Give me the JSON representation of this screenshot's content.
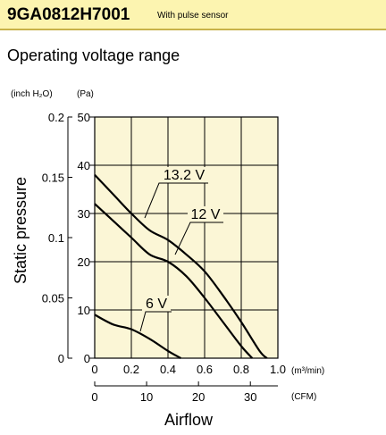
{
  "header": {
    "model": "9GA0812H7001",
    "subtitle": "With pulse sensor",
    "background_color": "#fcf4b0",
    "rule_color": "#c8b24a"
  },
  "chart_heading": "Operating voltage range",
  "chart_data": {
    "type": "line",
    "title": "Operating voltage range",
    "plot_background": "#fbf6d6",
    "grid": true,
    "xlabel": "Airflow",
    "ylabel": "Static pressure",
    "x_axis_primary": {
      "unit": "(m³/min)",
      "range": [
        0,
        1.0
      ],
      "ticks": [
        0,
        0.2,
        0.4,
        0.6,
        0.8,
        1.0
      ],
      "tick_labels": [
        "0",
        "0.2",
        "0.4",
        "0.6",
        "0.8",
        "1.0"
      ]
    },
    "x_axis_secondary": {
      "unit": "(CFM)",
      "range": [
        0,
        35.3
      ],
      "ticks": [
        0,
        10,
        20,
        30
      ],
      "tick_labels": [
        "0",
        "10",
        "20",
        "30"
      ]
    },
    "y_axis_primary": {
      "unit": "(Pa)",
      "range": [
        0,
        50
      ],
      "ticks": [
        0,
        10,
        20,
        30,
        40,
        50
      ],
      "tick_labels": [
        "0",
        "10",
        "20",
        "30",
        "40",
        "50"
      ]
    },
    "y_axis_secondary": {
      "unit": "(inch H₂O)",
      "range": [
        0,
        0.2
      ],
      "ticks": [
        0,
        0.05,
        0.1,
        0.15,
        0.2
      ],
      "tick_labels": [
        "0",
        "0.05",
        "0.1",
        "0.15",
        "0.2"
      ]
    },
    "series": [
      {
        "name": "13.2 V",
        "x": [
          0,
          0.1,
          0.2,
          0.3,
          0.4,
          0.5,
          0.6,
          0.7,
          0.8,
          0.9,
          0.94
        ],
        "y": [
          38,
          34,
          30,
          26.5,
          24.5,
          21.5,
          18,
          13,
          7.5,
          1.5,
          0
        ]
      },
      {
        "name": "12 V",
        "x": [
          0,
          0.1,
          0.2,
          0.3,
          0.4,
          0.5,
          0.6,
          0.7,
          0.8,
          0.86
        ],
        "y": [
          32,
          28.5,
          25,
          21.5,
          20,
          17,
          12.5,
          7.5,
          2.5,
          0
        ]
      },
      {
        "name": "6 V",
        "x": [
          0,
          0.1,
          0.2,
          0.3,
          0.4,
          0.47
        ],
        "y": [
          9,
          7,
          6,
          4,
          1.5,
          0
        ]
      }
    ]
  }
}
